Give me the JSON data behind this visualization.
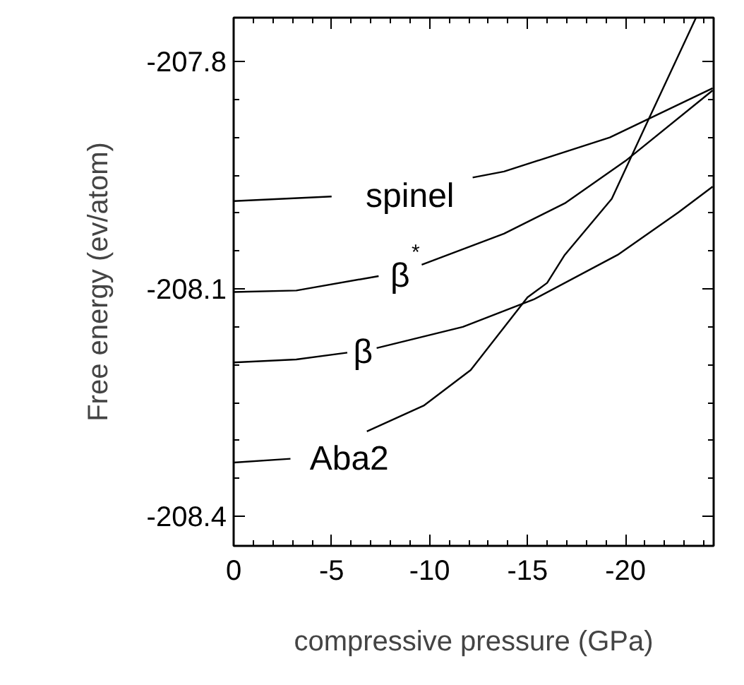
{
  "chart_data": {
    "type": "line",
    "xlabel": "compressive pressure (GPa)",
    "ylabel": "Free energy (ev/atom)",
    "xlim": [
      0,
      -24.5
    ],
    "ylim": [
      -208.439,
      -207.742
    ],
    "xticks": [
      0,
      -5,
      -10,
      -15,
      -20
    ],
    "yticks": [
      -207.8,
      -208.1,
      -208.4
    ],
    "grid": false,
    "marker": "none",
    "line_style": "solid",
    "series": [
      {
        "name": "spinel",
        "color": "#000000",
        "x": [
          0,
          -5.0,
          -9.0,
          -12.2,
          -13.8,
          -19.2,
          -24.45
        ],
        "values": [
          -207.984,
          -207.978,
          null,
          -207.953,
          -207.945,
          -207.9,
          -207.835
        ]
      },
      {
        "name": "β$^{*}$",
        "color": "#000000",
        "x": [
          0,
          -3.2,
          -7.4,
          -8.5,
          -9.6,
          -13.8,
          -16.9,
          -20,
          -24.45
        ],
        "values": [
          -208.104,
          -208.102,
          -208.083,
          null,
          -208.068,
          -208.027,
          -207.987,
          -207.931,
          -207.838
        ]
      },
      {
        "name": "β",
        "color": "#000000",
        "x": [
          0,
          -3.2,
          -5.8,
          -6.6,
          -7.3,
          -11.7,
          -15.3,
          -19.6,
          -22.7,
          -24.45
        ],
        "values": [
          -208.197,
          -208.193,
          -208.184,
          null,
          -208.178,
          -208.15,
          -208.114,
          -208.055,
          -207.999,
          -207.965
        ]
      },
      {
        "name": "Aba2",
        "color": "#000000",
        "x": [
          0,
          -2.9,
          -5.9,
          -6.8,
          -9.7,
          -12.1,
          -15.0,
          -16.0,
          -16.9,
          -19.3,
          -21.2,
          -23.6
        ],
        "values": [
          -208.329,
          -208.324,
          null,
          -208.288,
          -208.254,
          -208.207,
          -208.111,
          -208.092,
          -208.055,
          -207.981,
          -207.875,
          -207.742
        ]
      }
    ]
  }
}
